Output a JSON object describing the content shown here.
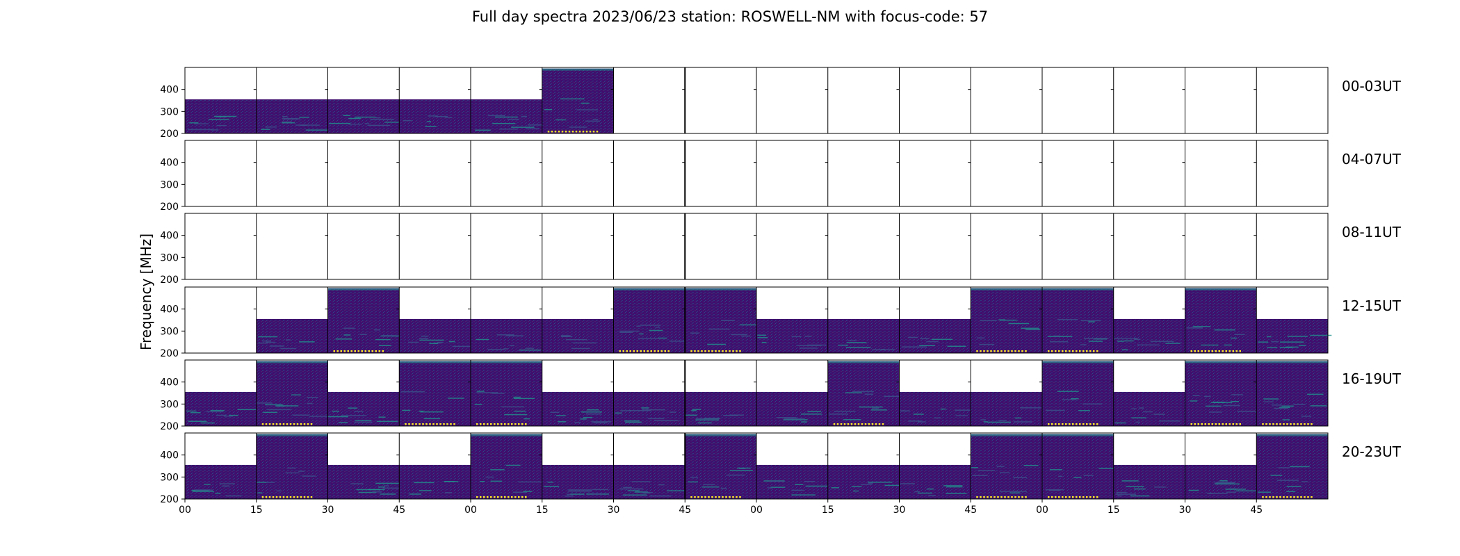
{
  "chart_data": {
    "type": "heatmap",
    "title": "Full day spectra 2023/06/23 station: ROSWELL-NM with focus-code: 57",
    "ylabel": "Frequency [MHz]",
    "ylim": [
      200,
      500
    ],
    "yticks": [
      "200",
      "300",
      "400"
    ],
    "xticks": [
      "00",
      "15",
      "30",
      "45",
      "00",
      "15",
      "30",
      "45",
      "00",
      "15",
      "30",
      "45",
      "00",
      "15",
      "30",
      "45"
    ],
    "colormap": "viridis",
    "colors": {
      "background": "#ffffff",
      "low": "#440154",
      "mid": "#3b528b",
      "teal": "#21918c",
      "high": "#fde725"
    },
    "rows": [
      {
        "label": "00-03UT",
        "top_freq": [
          355,
          355,
          355,
          355,
          355,
          495,
          null,
          null,
          null,
          null,
          null,
          null,
          null,
          null,
          null,
          null
        ]
      },
      {
        "label": "04-07UT",
        "top_freq": [
          null,
          null,
          null,
          null,
          null,
          null,
          null,
          null,
          null,
          null,
          null,
          null,
          null,
          null,
          null,
          null
        ]
      },
      {
        "label": "08-11UT",
        "top_freq": [
          null,
          null,
          null,
          null,
          null,
          null,
          null,
          null,
          null,
          null,
          null,
          null,
          null,
          null,
          null,
          null
        ]
      },
      {
        "label": "12-15UT",
        "top_freq": [
          null,
          355,
          495,
          355,
          355,
          355,
          495,
          495,
          355,
          355,
          355,
          495,
          495,
          355,
          495,
          355
        ]
      },
      {
        "label": "16-19UT",
        "top_freq": [
          355,
          495,
          355,
          495,
          495,
          355,
          355,
          355,
          355,
          495,
          355,
          355,
          495,
          355,
          495,
          495
        ]
      },
      {
        "label": "20-23UT",
        "top_freq": [
          355,
          495,
          355,
          355,
          495,
          355,
          355,
          495,
          355,
          355,
          355,
          495,
          495,
          355,
          355,
          495
        ]
      }
    ]
  }
}
